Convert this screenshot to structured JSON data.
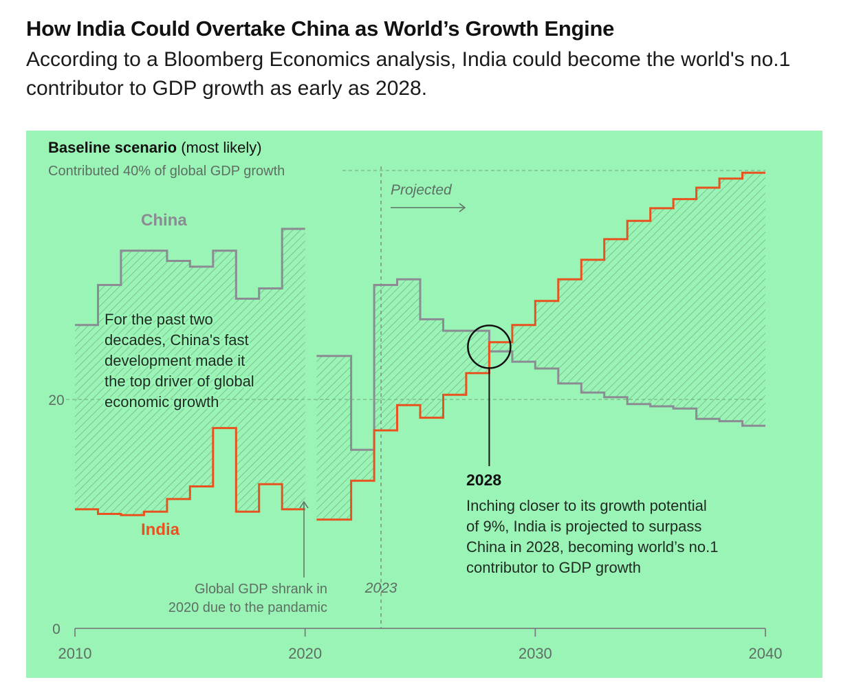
{
  "header": {
    "title": "How India Could Overtake China as World’s Growth Engine",
    "subtitle": "According to a Bloomberg Economics analysis, India could become the world's no.1 contributor to GDP growth as early as 2028."
  },
  "panel": {
    "heading_bold": "Baseline scenario",
    "heading_rest": " (most likely)",
    "top_line_label": "Contributed 40% of global GDP growth",
    "projected_label": "Projected",
    "china_label": "China",
    "india_label": "India",
    "china_note": [
      "For the past two",
      "decades, China's fast",
      "development made it",
      "the top driver of global",
      "economic growth"
    ],
    "pandemic_note": [
      "Global GDP shrank in",
      "2020 due to the pandamic"
    ],
    "year_2023_label": "2023",
    "callout_year": "2028",
    "callout_text": [
      "Inching closer to its growth potential",
      "of 9%, India is projected to surpass",
      "China in 2028, becoming world’s no.1",
      "contributor to GDP growth"
    ]
  },
  "colors": {
    "panel_bg": "#9af4b6",
    "china": "#8b8b93",
    "india": "#e8521f",
    "hatch": "#6da87c",
    "text_gray": "#5e6e64",
    "axis": "#7b7f80"
  },
  "chart_data": {
    "type": "line",
    "step": true,
    "x": [
      2010,
      2011,
      2012,
      2013,
      2014,
      2015,
      2016,
      2017,
      2018,
      2019,
      2020,
      2021,
      2022,
      2023,
      2024,
      2025,
      2026,
      2027,
      2028,
      2029,
      2030,
      2031,
      2032,
      2033,
      2034,
      2035,
      2036,
      2037,
      2038,
      2039
    ],
    "series": [
      {
        "name": "China",
        "values": [
          26.5,
          30,
          33,
          33,
          32.1,
          31.6,
          33,
          28.8,
          29.7,
          34.9,
          null,
          23.8,
          15.6,
          30,
          30.5,
          27,
          26,
          26,
          24.2,
          23.3,
          22.7,
          21.4,
          20.6,
          20.2,
          19.6,
          19.4,
          19.2,
          18.3,
          18.1,
          17.7
        ],
        "end": 2040,
        "end_value": 17.8
      },
      {
        "name": "India",
        "values": [
          10.4,
          10,
          9.9,
          10.2,
          11.3,
          12.4,
          17.5,
          10.2,
          12.6,
          10.4,
          null,
          9.5,
          12.9,
          17.3,
          19.5,
          18.4,
          20.4,
          22.3,
          25,
          26.5,
          28.6,
          30.5,
          32.2,
          34,
          35.6,
          36.7,
          37.5,
          38.5,
          39.3,
          39.8
        ],
        "end": 2040,
        "end_value": 39.9
      }
    ],
    "gap": [
      2020,
      2020.5
    ],
    "xlim": [
      2010,
      2040
    ],
    "ylim": [
      0,
      40
    ],
    "xticks": [
      2010,
      2020,
      2030,
      2040
    ],
    "yticks": [
      0,
      20
    ],
    "reference_lines": [
      {
        "axis": "y",
        "value": 40,
        "label": "Contributed 40% of global GDP growth"
      },
      {
        "axis": "y",
        "value": 20
      },
      {
        "axis": "x",
        "value": 2023.3,
        "label": "2023"
      }
    ],
    "projected_from": 2023.3,
    "highlight": {
      "x": 2028,
      "label": "2028"
    },
    "fill_between": "hatched",
    "legend": "direct labels"
  }
}
